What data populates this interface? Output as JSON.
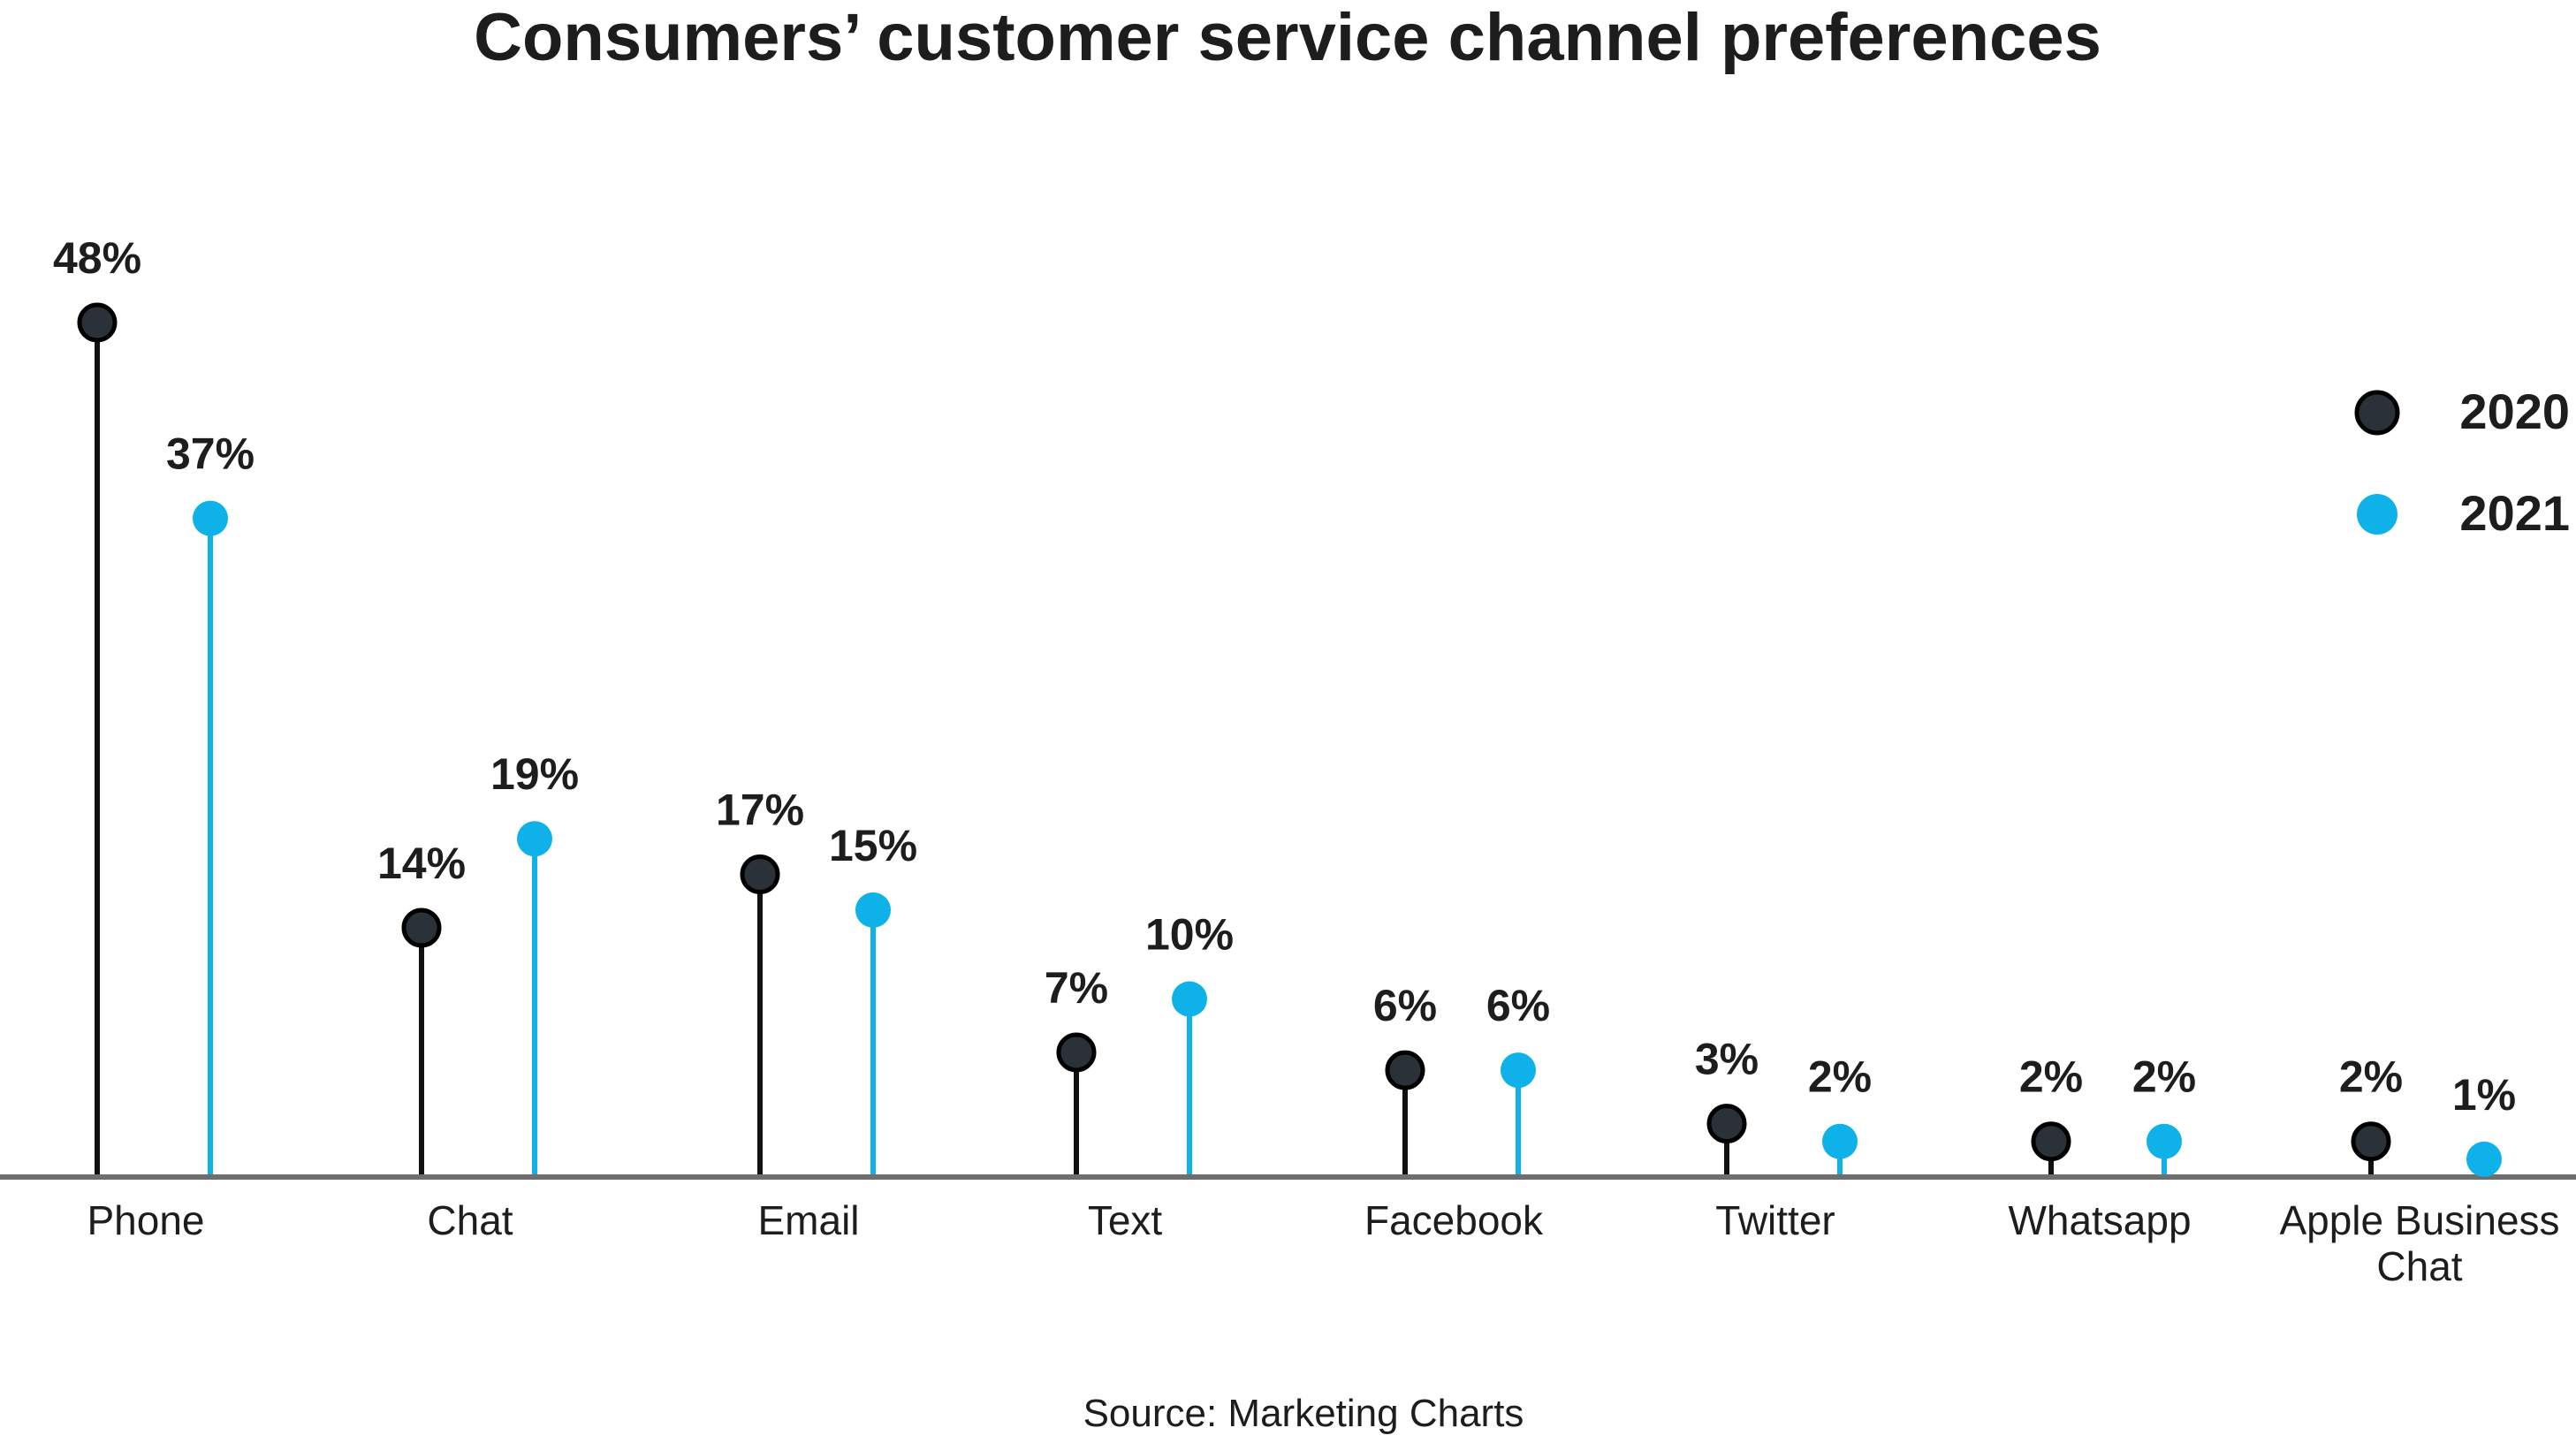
{
  "colors": {
    "series_2020": "#2b3138",
    "series_2021": "#0fb2e8",
    "axis": "#6e6e6e",
    "text": "#1d1d1d"
  },
  "chart_data": {
    "type": "lollipop",
    "title": "Consumers’ customer service channel preferences",
    "source": "Source: Marketing Charts",
    "xlabel": "",
    "ylabel": "",
    "ylim": [
      0,
      48
    ],
    "grid": false,
    "legend_position": "top-right",
    "categories": [
      "Phone",
      "Chat",
      "Email",
      "Text",
      "Facebook",
      "Twitter",
      "Whatsapp",
      "Apple Business Chat"
    ],
    "series": [
      {
        "name": "2020",
        "values": [
          48,
          14,
          17,
          7,
          6,
          3,
          2,
          2
        ],
        "labels": [
          "48%",
          "14%",
          "17%",
          "7%",
          "6%",
          "3%",
          "2%",
          "2%"
        ]
      },
      {
        "name": "2021",
        "values": [
          37,
          19,
          15,
          10,
          6,
          2,
          2,
          1
        ],
        "labels": [
          "37%",
          "19%",
          "15%",
          "10%",
          "6%",
          "2%",
          "2%",
          "1%"
        ]
      }
    ]
  }
}
